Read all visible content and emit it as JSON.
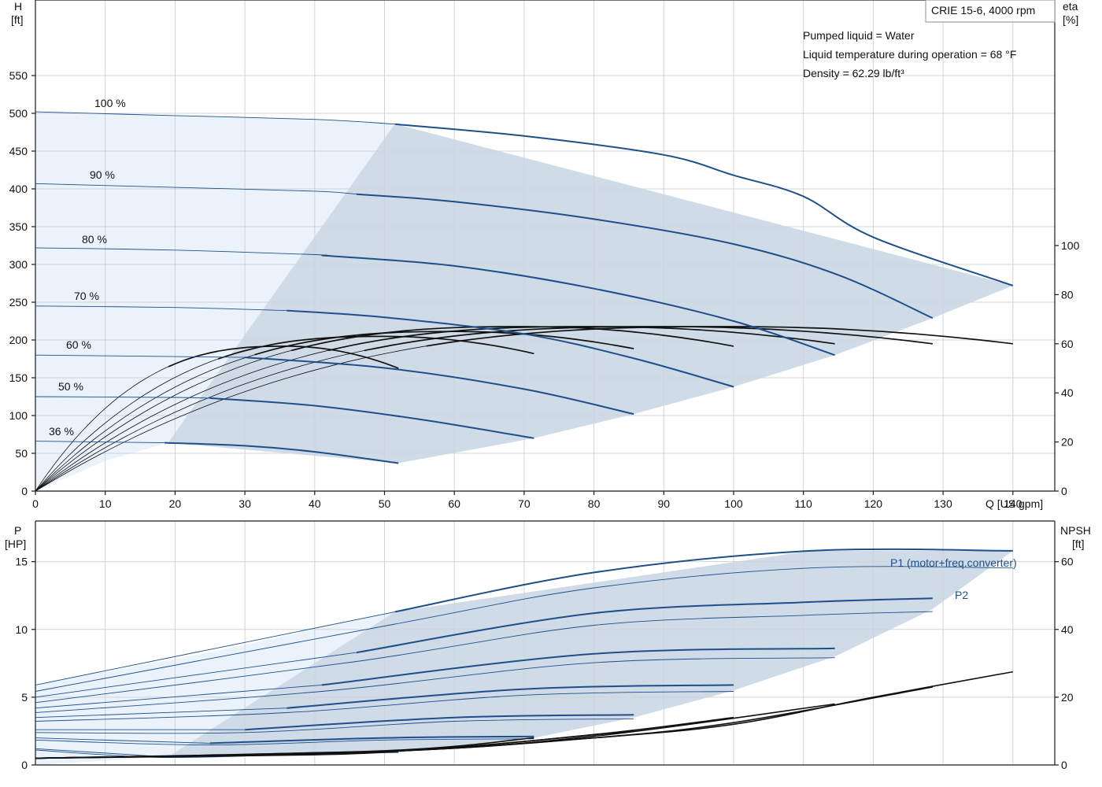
{
  "product_title": "CRIE 15-6, 4000 rpm",
  "info_lines": [
    "Pumped liquid = Water",
    "Liquid temperature during operation = 68 °F",
    "Density = 62.29 lb/ft³"
  ],
  "colors": {
    "curve_blue": "#1f4f8b",
    "area_fill": "#cfdbe7",
    "area_light": "#eaf3fb",
    "grid": "#cfd3d8",
    "npsh_eta": "#111111"
  },
  "chart_data": [
    {
      "type": "line",
      "title": "CRIE 15-6, 4000 rpm",
      "xlabel": "Q [US gpm]",
      "ylabel": "H [ft]",
      "y2label": "eta [%]",
      "xlim": [
        0,
        146
      ],
      "ylim": [
        0,
        650
      ],
      "y2lim": [
        0,
        200
      ],
      "x_ticks": [
        0,
        10,
        20,
        30,
        40,
        50,
        60,
        70,
        80,
        90,
        100,
        110,
        120,
        130,
        140
      ],
      "y_ticks": [
        0,
        50,
        100,
        150,
        200,
        250,
        300,
        350,
        400,
        450,
        500,
        550
      ],
      "y2_ticks": [
        0,
        20,
        40,
        60,
        80,
        100
      ],
      "grid": true,
      "head_series": [
        {
          "name": "100 %",
          "q_max": 140,
          "points": [
            [
              0,
              502
            ],
            [
              20,
              497
            ],
            [
              40,
              492
            ],
            [
              51,
              486
            ],
            [
              70,
              470
            ],
            [
              90,
              445
            ],
            [
              100,
              418
            ],
            [
              110,
              390
            ],
            [
              120,
              336
            ],
            [
              140,
              272
            ]
          ]
        },
        {
          "name": "90 %",
          "q_max": 128.5,
          "points": [
            [
              0,
              407
            ],
            [
              20,
              402
            ],
            [
              40,
              397
            ],
            [
              46,
              393
            ],
            [
              60,
              383
            ],
            [
              80,
              360
            ],
            [
              100,
              327
            ],
            [
              115,
              286
            ],
            [
              128.5,
              229
            ]
          ]
        },
        {
          "name": "80 %",
          "q_max": 114.5,
          "points": [
            [
              0,
              322
            ],
            [
              20,
              319
            ],
            [
              40,
              313
            ],
            [
              41,
              312
            ],
            [
              60,
              298
            ],
            [
              80,
              268
            ],
            [
              100,
              225
            ],
            [
              114.5,
              180
            ]
          ]
        },
        {
          "name": "70 %",
          "q_max": 100,
          "points": [
            [
              0,
              245
            ],
            [
              20,
              243
            ],
            [
              36,
              239
            ],
            [
              50,
              230
            ],
            [
              70,
              208
            ],
            [
              86,
              175
            ],
            [
              100,
              138
            ]
          ]
        },
        {
          "name": "60 %",
          "q_max": 85.7,
          "points": [
            [
              0,
              180
            ],
            [
              20,
              178
            ],
            [
              30,
              177
            ],
            [
              50,
              163
            ],
            [
              70,
              135
            ],
            [
              85.7,
              102
            ]
          ]
        },
        {
          "name": "50 %",
          "q_max": 71.4,
          "points": [
            [
              0,
              125
            ],
            [
              20,
              124
            ],
            [
              25,
              123
            ],
            [
              40,
              113
            ],
            [
              55,
              95
            ],
            [
              71.4,
              70
            ]
          ]
        },
        {
          "name": "36 %",
          "q_max": 52,
          "points": [
            [
              0,
              66
            ],
            [
              18.5,
              64
            ],
            [
              30,
              60
            ],
            [
              40,
              52
            ],
            [
              52,
              37
            ]
          ]
        }
      ],
      "efficiency_series": [
        {
          "name": "100 %",
          "peak_q": 100,
          "peak_eta": 67,
          "end_q": 140,
          "end_eta": 60
        },
        {
          "name": "90 %",
          "peak_q": 90,
          "peak_eta": 67,
          "end_q": 128.5,
          "end_eta": 60
        },
        {
          "name": "80 %",
          "peak_q": 80,
          "peak_eta": 67,
          "end_q": 114.5,
          "end_eta": 60
        },
        {
          "name": "70 %",
          "peak_q": 70,
          "peak_eta": 67,
          "end_q": 100,
          "end_eta": 59
        },
        {
          "name": "60 %",
          "peak_q": 60,
          "peak_eta": 65,
          "end_q": 85.7,
          "end_eta": 58
        },
        {
          "name": "50 %",
          "peak_q": 50,
          "peak_eta": 63,
          "end_q": 71.4,
          "end_eta": 56
        },
        {
          "name": "36 %",
          "peak_q": 36,
          "peak_eta": 59,
          "end_q": 52,
          "end_eta": 50
        }
      ],
      "operating_area_head": [
        [
          51.5,
          486
        ],
        [
          140,
          272
        ],
        [
          128.5,
          229
        ],
        [
          114.5,
          180
        ],
        [
          100,
          138
        ],
        [
          85.7,
          102
        ],
        [
          71.4,
          70
        ],
        [
          52,
          37
        ],
        [
          30,
          55
        ],
        [
          19,
          64
        ]
      ]
    },
    {
      "type": "line",
      "xlabel": "Q [US gpm]",
      "ylabel": "P [HP]",
      "y2label": "NPSH [ft]",
      "xlim": [
        0,
        146
      ],
      "ylim": [
        0,
        18
      ],
      "y2lim": [
        0,
        72
      ],
      "y_ticks": [
        0,
        5,
        10,
        15
      ],
      "y2_ticks": [
        0,
        20,
        40,
        60
      ],
      "grid": true,
      "series_labels": {
        "p1": "P1 (motor+freq.converter)",
        "p2": "P2"
      },
      "p1_series": [
        {
          "name": "100 %",
          "points": [
            [
              0,
              5.9
            ],
            [
              51.5,
              11.3
            ],
            [
              80,
              14.2
            ],
            [
              111,
              15.8
            ],
            [
              140,
              15.8
            ]
          ]
        },
        {
          "name": "90 %",
          "points": [
            [
              0,
              5.0
            ],
            [
              46,
              8.3
            ],
            [
              80,
              11.2
            ],
            [
              110,
              12.0
            ],
            [
              128.5,
              12.3
            ]
          ]
        },
        {
          "name": "80 %",
          "points": [
            [
              0,
              4.2
            ],
            [
              41,
              5.9
            ],
            [
              80,
              8.2
            ],
            [
              114.5,
              8.6
            ]
          ]
        },
        {
          "name": "70 %",
          "points": [
            [
              0,
              3.5
            ],
            [
              36,
              4.2
            ],
            [
              70,
              5.6
            ],
            [
              100,
              5.9
            ]
          ]
        },
        {
          "name": "60 %",
          "points": [
            [
              0,
              2.6
            ],
            [
              30,
              2.6
            ],
            [
              60,
              3.5
            ],
            [
              85.7,
              3.7
            ]
          ]
        },
        {
          "name": "50 %",
          "points": [
            [
              0,
              2.0
            ],
            [
              25,
              1.6
            ],
            [
              50,
              2.0
            ],
            [
              71.4,
              2.1
            ]
          ]
        },
        {
          "name": "36 %",
          "points": [
            [
              0,
              1.2
            ],
            [
              18.5,
              0.6
            ],
            [
              40,
              0.9
            ],
            [
              52,
              1.0
            ]
          ]
        }
      ],
      "p2_points_100": [
        [
          0,
          5.3
        ],
        [
          51.5,
          10.5
        ],
        [
          80,
          13.3
        ],
        [
          111,
          14.7
        ],
        [
          140,
          14.7
        ]
      ],
      "npsh_series": [
        {
          "name": "100 %",
          "points": [
            [
              0,
              2
            ],
            [
              50,
              4
            ],
            [
              80,
              8
            ],
            [
              100,
              12
            ],
            [
              120,
              20
            ],
            [
              140,
              27.5
            ]
          ]
        },
        {
          "name": "90 %",
          "points": [
            [
              0,
              2
            ],
            [
              50,
              4
            ],
            [
              80,
              8
            ],
            [
              100,
              12.5
            ],
            [
              128.5,
              23
            ]
          ]
        },
        {
          "name": "80 %",
          "points": [
            [
              0,
              2
            ],
            [
              50,
              4
            ],
            [
              80,
              8.5
            ],
            [
              114.5,
              18
            ]
          ]
        },
        {
          "name": "70 %",
          "points": [
            [
              0,
              2
            ],
            [
              50,
              4
            ],
            [
              80,
              9
            ],
            [
              100,
              14
            ]
          ]
        },
        {
          "name": "60 %",
          "points": [
            [
              0,
              2
            ],
            [
              50,
              4
            ],
            [
              85.7,
              10
            ]
          ]
        },
        {
          "name": "50 %",
          "points": [
            [
              0,
              2
            ],
            [
              50,
              4.2
            ],
            [
              71.4,
              8
            ]
          ]
        },
        {
          "name": "36 %",
          "points": [
            [
              0,
              2
            ],
            [
              40,
              3
            ],
            [
              52,
              4
            ]
          ]
        }
      ],
      "operating_area_power": [
        [
          51.5,
          11.3
        ],
        [
          111,
          15.8
        ],
        [
          140,
          15.8
        ],
        [
          128.5,
          11.5
        ],
        [
          114.5,
          8.0
        ],
        [
          100,
          5.5
        ],
        [
          85.7,
          3.5
        ],
        [
          71.4,
          2.0
        ],
        [
          52,
          0.9
        ],
        [
          19,
          0.6
        ]
      ]
    }
  ]
}
